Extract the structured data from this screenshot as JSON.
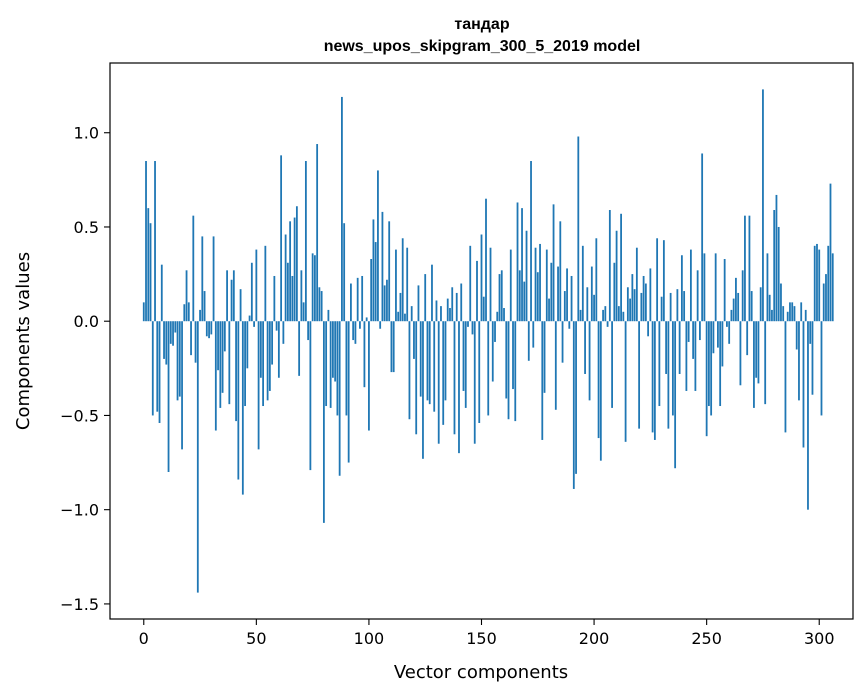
{
  "chart_data": {
    "type": "bar",
    "title": "тандар",
    "subtitle": "news_upos_skipgram_300_5_2019 model",
    "xlabel": "Vector components",
    "ylabel": "Components values",
    "xlim": [
      -15,
      315
    ],
    "ylim": [
      -1.58,
      1.37
    ],
    "xticks": [
      0,
      50,
      100,
      150,
      200,
      250,
      300
    ],
    "xtick_labels": [
      "0",
      "50",
      "100",
      "150",
      "200",
      "250",
      "300"
    ],
    "yticks": [
      -1.5,
      -1.0,
      -0.5,
      0.0,
      0.5,
      1.0
    ],
    "ytick_labels": [
      "−1.5",
      "−1.0",
      "−0.5",
      "0.0",
      "0.5",
      "1.0"
    ],
    "grid": false,
    "bar_color": "#1f77b4",
    "values": [
      0.1,
      0.85,
      0.6,
      0.52,
      -0.5,
      0.85,
      -0.48,
      -0.54,
      0.3,
      -0.2,
      -0.23,
      -0.8,
      -0.12,
      -0.13,
      -0.06,
      -0.42,
      -0.4,
      -0.68,
      0.09,
      0.27,
      0.1,
      -0.18,
      0.56,
      -0.22,
      -1.44,
      0.06,
      0.45,
      0.16,
      -0.08,
      -0.09,
      -0.07,
      0.45,
      -0.58,
      -0.26,
      -0.46,
      -0.38,
      -0.16,
      0.27,
      -0.44,
      0.22,
      0.27,
      -0.53,
      -0.84,
      0.17,
      -0.92,
      -0.45,
      -0.25,
      0.03,
      0.31,
      -0.03,
      0.38,
      -0.68,
      -0.3,
      -0.45,
      0.4,
      -0.42,
      -0.37,
      -0.23,
      0.24,
      -0.05,
      -0.3,
      0.88,
      -0.12,
      0.46,
      0.31,
      0.53,
      0.24,
      0.55,
      0.61,
      -0.29,
      0.27,
      0.1,
      0.85,
      -0.1,
      -0.79,
      0.36,
      0.35,
      0.94,
      0.18,
      0.16,
      -1.07,
      -0.45,
      0.06,
      -0.46,
      -0.3,
      -0.32,
      -0.5,
      -0.82,
      1.19,
      0.52,
      -0.5,
      -0.75,
      0.2,
      -0.1,
      -0.12,
      0.23,
      -0.04,
      0.24,
      -0.35,
      0.02,
      -0.58,
      0.33,
      0.54,
      0.42,
      0.8,
      -0.04,
      0.58,
      0.19,
      0.22,
      0.53,
      -0.27,
      -0.27,
      0.38,
      0.05,
      0.15,
      0.44,
      0.04,
      0.39,
      -0.52,
      0.08,
      -0.2,
      -0.6,
      0.19,
      -0.4,
      -0.73,
      0.25,
      -0.42,
      -0.44,
      0.3,
      -0.48,
      0.11,
      -0.65,
      0.08,
      -0.55,
      -0.42,
      0.12,
      0.07,
      0.18,
      -0.6,
      0.15,
      -0.7,
      0.2,
      -0.37,
      -0.46,
      -0.03,
      0.4,
      -0.07,
      -0.65,
      0.32,
      -0.54,
      0.46,
      0.13,
      0.65,
      -0.5,
      0.39,
      -0.32,
      -0.11,
      0.05,
      0.25,
      0.27,
      0.07,
      -0.41,
      -0.52,
      0.38,
      -0.36,
      -0.53,
      0.63,
      0.27,
      0.6,
      0.21,
      0.48,
      -0.21,
      0.85,
      -0.14,
      0.39,
      0.26,
      0.41,
      -0.63,
      -0.38,
      0.38,
      0.12,
      0.31,
      0.62,
      -0.47,
      0.29,
      0.53,
      -0.22,
      0.16,
      0.28,
      -0.04,
      0.24,
      -0.89,
      -0.81,
      0.98,
      0.06,
      0.4,
      -0.28,
      0.18,
      -0.42,
      0.29,
      0.14,
      0.44,
      -0.62,
      -0.74,
      0.06,
      0.08,
      -0.03,
      0.59,
      -0.46,
      0.31,
      0.48,
      0.08,
      0.57,
      0.05,
      -0.64,
      0.18,
      0.12,
      0.25,
      0.17,
      0.39,
      -0.57,
      0.15,
      0.24,
      0.2,
      -0.08,
      0.28,
      -0.59,
      -0.63,
      0.44,
      -0.45,
      0.13,
      0.43,
      -0.28,
      -0.57,
      0.15,
      -0.5,
      -0.78,
      0.17,
      -0.28,
      0.35,
      0.16,
      -0.37,
      -0.11,
      0.38,
      -0.2,
      -0.37,
      0.27,
      -0.1,
      0.89,
      0.36,
      -0.61,
      -0.45,
      -0.5,
      -0.17,
      0.36,
      -0.14,
      -0.45,
      -0.24,
      0.33,
      -0.03,
      -0.12,
      0.06,
      0.12,
      0.23,
      0.15,
      -0.34,
      0.27,
      0.56,
      -0.18,
      0.56,
      0.16,
      -0.46,
      -0.3,
      -0.33,
      0.18,
      1.23,
      -0.44,
      0.36,
      0.14,
      0.06,
      0.59,
      0.67,
      0.5,
      0.2,
      0.08,
      -0.59,
      0.05,
      0.1,
      0.1,
      0.08,
      -0.15,
      -0.42,
      0.1,
      -0.67,
      0.06,
      -1.0,
      -0.12,
      -0.39,
      0.4,
      0.41,
      0.38,
      -0.5,
      0.2,
      0.25,
      0.4,
      0.73,
      0.36
    ]
  }
}
